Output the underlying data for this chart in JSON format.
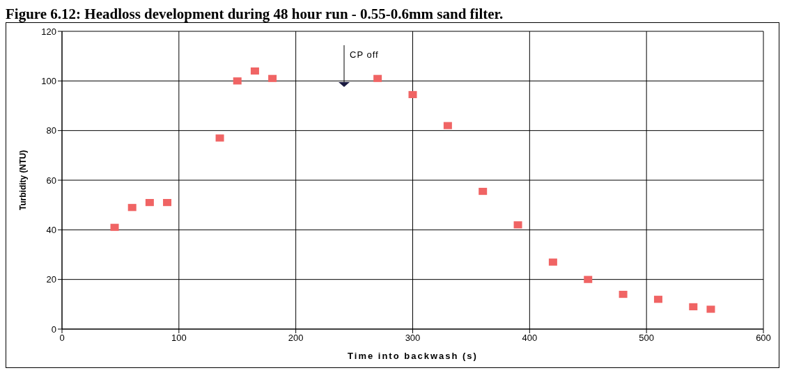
{
  "chart_data": {
    "type": "scatter",
    "title": "Figure 6.12: Headloss development during 48 hour run - 0.55-0.6mm sand filter.",
    "xlabel": "Time into backwash (s)",
    "ylabel": "Turbidity (NTU)",
    "x": [
      45,
      60,
      75,
      90,
      135,
      150,
      165,
      180,
      270,
      300,
      330,
      360,
      390,
      420,
      450,
      480,
      510,
      540,
      555
    ],
    "series": [
      {
        "color": "#f06464",
        "values": [
          41,
          49,
          51,
          51,
          77,
          100,
          104,
          101,
          101,
          94.5,
          82,
          55.5,
          42,
          27,
          20,
          14,
          12,
          9,
          8
        ]
      }
    ],
    "xlim": [
      0,
      600
    ],
    "xticks": [
      0,
      100,
      200,
      300,
      400,
      500,
      600
    ],
    "ylim": [
      0,
      120
    ],
    "yticks": [
      0,
      20,
      40,
      60,
      80,
      100,
      120
    ],
    "grid": true,
    "marker": "square",
    "annotations": [
      "CP off"
    ]
  }
}
